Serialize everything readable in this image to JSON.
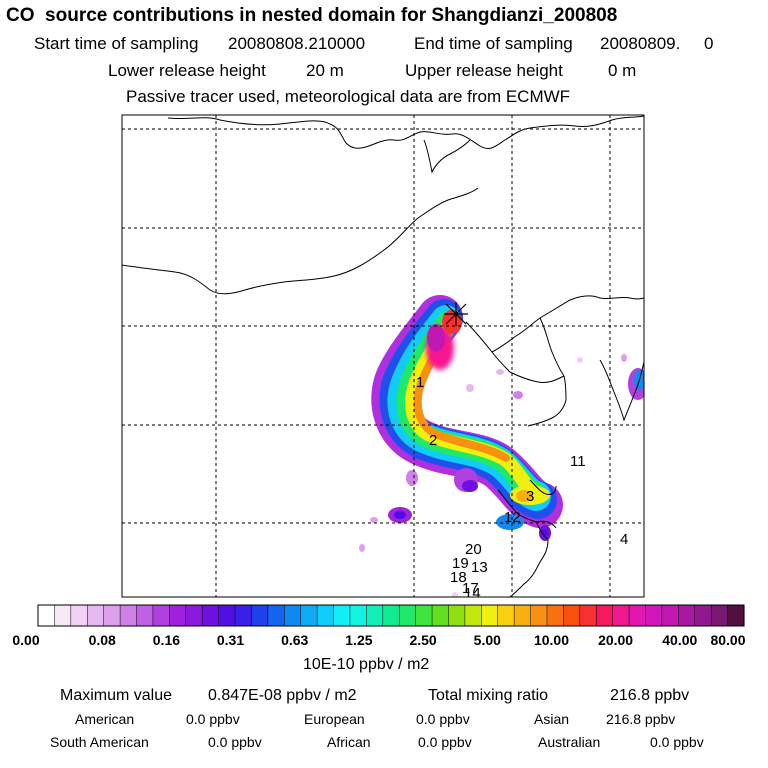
{
  "header": {
    "title": "CO  source contributions in nested domain for Shangdianzi_200808",
    "start_label": "Start time of sampling",
    "start_value": "20080808.210000",
    "end_label": "End time of sampling",
    "end_value": "20080809.     0",
    "lower_label": "Lower release height",
    "lower_value": "20 m",
    "upper_label": "Upper release height",
    "upper_value": "0 m",
    "note": "Passive tracer used, meteorological data are from ECMWF"
  },
  "map": {
    "trajectory_labels": [
      "1",
      "2",
      "3",
      "4",
      "11",
      "12",
      "20",
      "19",
      "13",
      "18",
      "17",
      "14"
    ]
  },
  "colorbar": {
    "tick_labels": [
      "0.00",
      "0.08",
      "0.16",
      "0.31",
      "0.63",
      "1.25",
      "2.50",
      "5.00",
      "10.00",
      "20.00",
      "40.00",
      "80.00"
    ],
    "colors": [
      "#ffffff",
      "#f8e8f8",
      "#f0d0f4",
      "#e6b8f0",
      "#dca0ec",
      "#d080e8",
      "#c060e4",
      "#b040e0",
      "#a020dc",
      "#8c18dc",
      "#7010e0",
      "#5010e4",
      "#3820e8",
      "#2040ec",
      "#1464f0",
      "#1088f2",
      "#10aaf4",
      "#10ccf6",
      "#10eef8",
      "#10f4e0",
      "#10f0b8",
      "#10ec90",
      "#20e868",
      "#40e440",
      "#60e020",
      "#90e010",
      "#c0e810",
      "#f0f010",
      "#f8d010",
      "#f8b010",
      "#f89010",
      "#f87010",
      "#f85010",
      "#f83030",
      "#f81860",
      "#f01890",
      "#e018b0",
      "#d018b8",
      "#c018b0",
      "#a818a0",
      "#901890",
      "#781870",
      "#501040"
    ],
    "unit": "10E-10 ppbv / m2"
  },
  "footer": {
    "max_label": "Maximum value",
    "max_value": "0.847E-08 ppbv / m2",
    "total_label": "Total mixing ratio",
    "total_value": "216.8 ppbv",
    "regions": [
      {
        "name": "American",
        "value": "0.0 ppbv"
      },
      {
        "name": "European",
        "value": "0.0 ppbv"
      },
      {
        "name": "Asian",
        "value": "216.8 ppbv"
      },
      {
        "name": "South American",
        "value": "0.0 ppbv"
      },
      {
        "name": "African",
        "value": "0.0 ppbv"
      },
      {
        "name": "Australian",
        "value": "0.0 ppbv"
      }
    ]
  }
}
